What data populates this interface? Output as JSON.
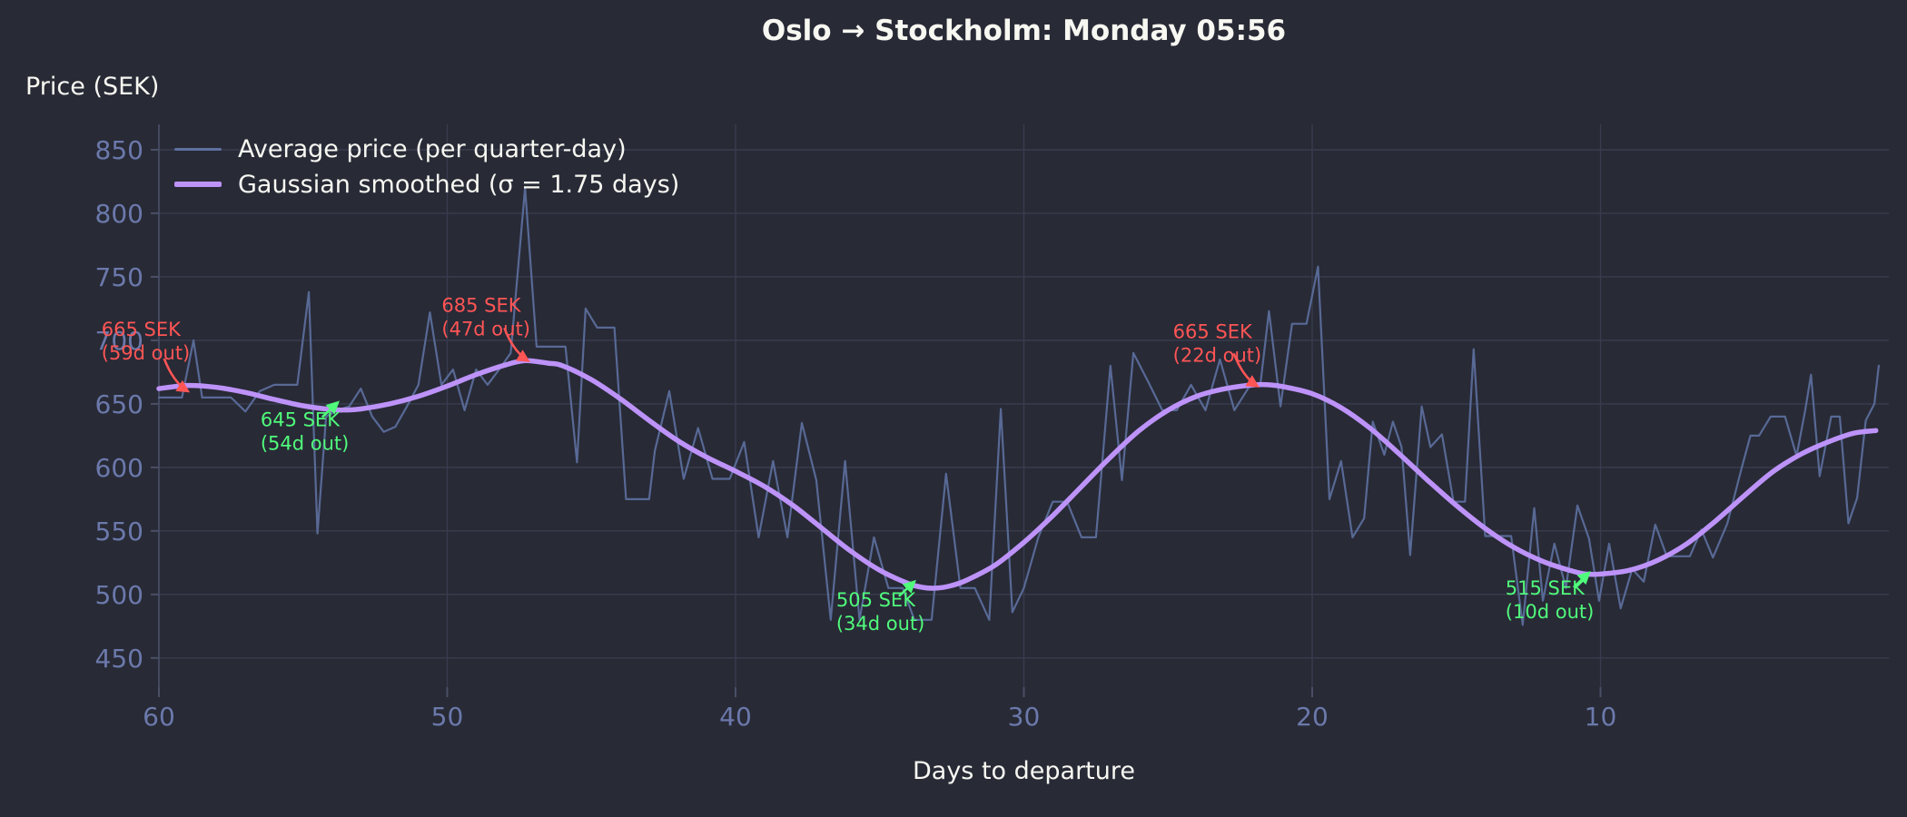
{
  "title": "Oslo → Stockholm: Monday 05:56",
  "colors": {
    "background": "#282a36",
    "foreground": "#f8f8f2",
    "tick_label": "#6b79ab",
    "gridline": "#383c4e",
    "spine": "#4a4f66",
    "raw_line": "#5d70a0",
    "smoothed_line": "#bd93f9",
    "annotation_max": "#ff5555",
    "annotation_min": "#50fa7b"
  },
  "chart_data": {
    "type": "line",
    "title": "Oslo → Stockholm: Monday 05:56",
    "xlabel": "Days to departure",
    "ylabel": "Price (SEK)",
    "x_axis_reversed": true,
    "xlim": [
      60,
      0
    ],
    "ylim": [
      427,
      870
    ],
    "x_ticks": [
      60,
      50,
      40,
      30,
      20,
      10
    ],
    "y_ticks": [
      850,
      800,
      750,
      700,
      650,
      600,
      550,
      500,
      450
    ],
    "grid": true,
    "legend_position": "upper-left",
    "series": [
      {
        "name": "Average price (per quarter-day)",
        "color": "#5d70a0",
        "width": 2.2,
        "opacity": 0.9,
        "smooth": false,
        "points": [
          [
            60,
            655
          ],
          [
            59.6,
            655
          ],
          [
            59.2,
            655
          ],
          [
            58.8,
            700
          ],
          [
            58.5,
            655
          ],
          [
            58,
            655
          ],
          [
            57.5,
            655
          ],
          [
            57,
            644
          ],
          [
            56.5,
            660
          ],
          [
            56,
            665
          ],
          [
            55.6,
            665
          ],
          [
            55.2,
            665
          ],
          [
            54.8,
            738
          ],
          [
            54.5,
            548
          ],
          [
            54.2,
            640
          ],
          [
            53.8,
            645
          ],
          [
            53.4,
            648
          ],
          [
            53,
            662
          ],
          [
            52.6,
            640
          ],
          [
            52.2,
            628
          ],
          [
            51.8,
            632
          ],
          [
            51.4,
            648
          ],
          [
            51,
            665
          ],
          [
            50.6,
            722
          ],
          [
            50.2,
            665
          ],
          [
            49.8,
            677
          ],
          [
            49.4,
            645
          ],
          [
            49,
            677
          ],
          [
            48.6,
            665
          ],
          [
            48.2,
            677
          ],
          [
            47.8,
            690
          ],
          [
            47.3,
            820
          ],
          [
            46.9,
            695
          ],
          [
            46.4,
            695
          ],
          [
            45.9,
            695
          ],
          [
            45.5,
            604
          ],
          [
            45.2,
            725
          ],
          [
            44.8,
            710
          ],
          [
            44.2,
            710
          ],
          [
            43.8,
            575
          ],
          [
            43.4,
            575
          ],
          [
            43,
            575
          ],
          [
            42.8,
            613
          ],
          [
            42.3,
            660
          ],
          [
            41.8,
            591
          ],
          [
            41.3,
            631
          ],
          [
            40.8,
            591
          ],
          [
            40.2,
            591
          ],
          [
            39.7,
            620
          ],
          [
            39.2,
            545
          ],
          [
            38.7,
            605
          ],
          [
            38.2,
            545
          ],
          [
            37.7,
            635
          ],
          [
            37.2,
            590
          ],
          [
            36.7,
            480
          ],
          [
            36.2,
            605
          ],
          [
            35.7,
            480
          ],
          [
            35.2,
            545
          ],
          [
            34.7,
            505
          ],
          [
            34.2,
            505
          ],
          [
            33.8,
            480
          ],
          [
            33.2,
            480
          ],
          [
            32.7,
            595
          ],
          [
            32.2,
            505
          ],
          [
            31.7,
            505
          ],
          [
            31.2,
            480
          ],
          [
            30.8,
            646
          ],
          [
            30.4,
            486
          ],
          [
            30,
            505
          ],
          [
            29.5,
            545
          ],
          [
            29,
            573
          ],
          [
            28.5,
            573
          ],
          [
            28,
            545
          ],
          [
            27.5,
            545
          ],
          [
            27,
            680
          ],
          [
            26.6,
            590
          ],
          [
            26.2,
            690
          ],
          [
            25.7,
            668
          ],
          [
            25.2,
            645
          ],
          [
            24.7,
            645
          ],
          [
            24.2,
            665
          ],
          [
            23.7,
            645
          ],
          [
            23.2,
            685
          ],
          [
            22.7,
            645
          ],
          [
            22.2,
            663
          ],
          [
            21.8,
            665
          ],
          [
            21.5,
            723
          ],
          [
            21.1,
            648
          ],
          [
            20.7,
            713
          ],
          [
            20.2,
            713
          ],
          [
            19.8,
            758
          ],
          [
            19.4,
            575
          ],
          [
            19,
            605
          ],
          [
            18.6,
            545
          ],
          [
            18.2,
            560
          ],
          [
            17.9,
            636
          ],
          [
            17.5,
            610
          ],
          [
            17.2,
            636
          ],
          [
            16.9,
            616
          ],
          [
            16.6,
            531
          ],
          [
            16.2,
            648
          ],
          [
            15.9,
            616
          ],
          [
            15.5,
            626
          ],
          [
            15.1,
            573
          ],
          [
            14.7,
            573
          ],
          [
            14.4,
            693
          ],
          [
            14,
            546
          ],
          [
            13.5,
            546
          ],
          [
            13.1,
            546
          ],
          [
            12.7,
            476
          ],
          [
            12.3,
            568
          ],
          [
            12,
            495
          ],
          [
            11.6,
            540
          ],
          [
            11.2,
            505
          ],
          [
            10.8,
            570
          ],
          [
            10.4,
            544
          ],
          [
            10.05,
            495
          ],
          [
            9.7,
            540
          ],
          [
            9.3,
            489
          ],
          [
            8.9,
            520
          ],
          [
            8.5,
            510
          ],
          [
            8.1,
            555
          ],
          [
            7.7,
            530
          ],
          [
            7.3,
            530
          ],
          [
            6.9,
            530
          ],
          [
            6.5,
            551
          ],
          [
            6.1,
            529
          ],
          [
            5.6,
            556
          ],
          [
            5.1,
            600
          ],
          [
            4.8,
            625
          ],
          [
            4.5,
            625
          ],
          [
            4.1,
            640
          ],
          [
            3.6,
            640
          ],
          [
            3.2,
            609
          ],
          [
            2.9,
            645
          ],
          [
            2.7,
            673
          ],
          [
            2.4,
            593
          ],
          [
            2,
            640
          ],
          [
            1.7,
            640
          ],
          [
            1.4,
            556
          ],
          [
            1.1,
            576
          ],
          [
            0.8,
            637
          ],
          [
            0.5,
            650
          ],
          [
            0.35,
            680
          ]
        ]
      },
      {
        "name": "Gaussian smoothed (σ = 1.75 days)",
        "color": "#bd93f9",
        "width": 5.5,
        "opacity": 1,
        "smooth": true,
        "points": [
          [
            60,
            662
          ],
          [
            59,
            664.5
          ],
          [
            58,
            663
          ],
          [
            57,
            659
          ],
          [
            56,
            653.5
          ],
          [
            55,
            648.5
          ],
          [
            54,
            645.5
          ],
          [
            53.5,
            645.2
          ],
          [
            53,
            646
          ],
          [
            52,
            650
          ],
          [
            51,
            656
          ],
          [
            50,
            664
          ],
          [
            49,
            673
          ],
          [
            48,
            680.5
          ],
          [
            47.3,
            684
          ],
          [
            46.5,
            682
          ],
          [
            46,
            680
          ],
          [
            45,
            669
          ],
          [
            44,
            654
          ],
          [
            43,
            637
          ],
          [
            42,
            621
          ],
          [
            41,
            608
          ],
          [
            40,
            597
          ],
          [
            39,
            585
          ],
          [
            38,
            570
          ],
          [
            37,
            552
          ],
          [
            36,
            534
          ],
          [
            35,
            519
          ],
          [
            34,
            508.5
          ],
          [
            33.5,
            505.5
          ],
          [
            33,
            505
          ],
          [
            32.5,
            507
          ],
          [
            32,
            511
          ],
          [
            31,
            523
          ],
          [
            30,
            541
          ],
          [
            29,
            562
          ],
          [
            28,
            585
          ],
          [
            27,
            608
          ],
          [
            26,
            629
          ],
          [
            25,
            645
          ],
          [
            24,
            656
          ],
          [
            23,
            662
          ],
          [
            22,
            665
          ],
          [
            21.5,
            665
          ],
          [
            21,
            663.5
          ],
          [
            20,
            658
          ],
          [
            19,
            647
          ],
          [
            18,
            631
          ],
          [
            17,
            611
          ],
          [
            16,
            590
          ],
          [
            15,
            570
          ],
          [
            14,
            552
          ],
          [
            13,
            537
          ],
          [
            12,
            526
          ],
          [
            11,
            518.5
          ],
          [
            10.5,
            516
          ],
          [
            10,
            516
          ],
          [
            9,
            519
          ],
          [
            8,
            527
          ],
          [
            7,
            540
          ],
          [
            6,
            558
          ],
          [
            5,
            578
          ],
          [
            4,
            597
          ],
          [
            3,
            611
          ],
          [
            2,
            621
          ],
          [
            1.2,
            627
          ],
          [
            0.45,
            629
          ]
        ]
      }
    ],
    "legend": [
      {
        "label": "Average price (per quarter-day)",
        "color": "#5d70a0",
        "thickness": 3
      },
      {
        "label": "Gaussian smoothed (σ = 1.75 days)",
        "color": "#bd93f9",
        "thickness": 6
      }
    ],
    "annotations": [
      {
        "line1": "665 SEK",
        "line2": "(59d out)",
        "color": "#ff5555",
        "kind": "local-max",
        "tip_day": 59,
        "tip_price": 660,
        "text_dx": -95,
        "text_dy": -61,
        "dir": "down"
      },
      {
        "line1": "645 SEK",
        "line2": "(54d out)",
        "color": "#50fa7b",
        "kind": "local-min",
        "tip_day": 53.8,
        "tip_price": 651,
        "text_dx": -85,
        "text_dy": 26,
        "dir": "up"
      },
      {
        "line1": "685 SEK",
        "line2": "(47d out)",
        "color": "#ff5555",
        "kind": "local-max",
        "tip_day": 47.2,
        "tip_price": 684,
        "text_dx": -95,
        "text_dy": -54,
        "dir": "down"
      },
      {
        "line1": "505 SEK",
        "line2": "(34d out)",
        "color": "#50fa7b",
        "kind": "local-min",
        "tip_day": 33.8,
        "tip_price": 510,
        "text_dx": -86,
        "text_dy": 27,
        "dir": "up"
      },
      {
        "line1": "665 SEK",
        "line2": "(22d out)",
        "color": "#ff5555",
        "kind": "local-max",
        "tip_day": 21.9,
        "tip_price": 664,
        "text_dx": -93,
        "text_dy": -53,
        "dir": "down"
      },
      {
        "line1": "515 SEK",
        "line2": "(10d out)",
        "color": "#50fa7b",
        "kind": "local-min",
        "tip_day": 10.4,
        "tip_price": 517,
        "text_dx": -92,
        "text_dy": 24,
        "dir": "up"
      }
    ]
  }
}
